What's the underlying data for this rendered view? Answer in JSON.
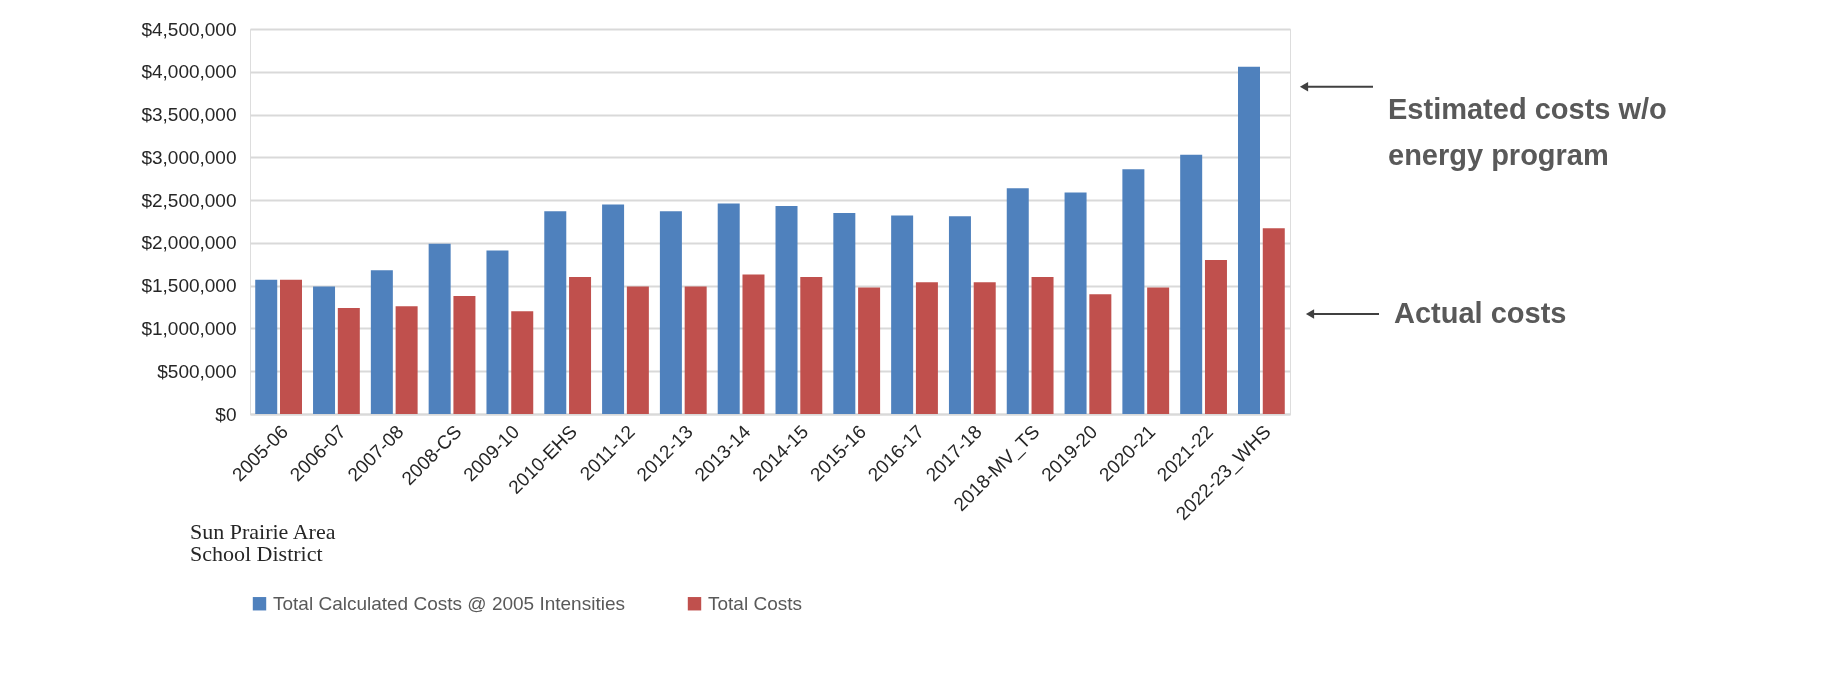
{
  "chart_data": {
    "type": "bar",
    "categories": [
      "2005-06",
      "2006-07",
      "2007-08",
      "2008-CS",
      "2009-10",
      "2010-EHS",
      "2011-12",
      "2012-13",
      "2013-14",
      "2014-15",
      "2015-16",
      "2016-17",
      "2017-18",
      "2018-MV_TS",
      "2019-20",
      "2020-21",
      "2021-22",
      "2022-23_WHS"
    ],
    "series": [
      {
        "name": "Total Calculated Costs @ 2005 Intensities",
        "color": "#4f81bd",
        "values": [
          1570000,
          1490000,
          1680000,
          1990000,
          1910000,
          2370000,
          2450000,
          2370000,
          2460000,
          2430000,
          2350000,
          2320000,
          2310000,
          2640000,
          2590000,
          2860000,
          3030000,
          4060000
        ]
      },
      {
        "name": "Total Costs",
        "color": "#c0504d",
        "values": [
          1570000,
          1240000,
          1260000,
          1380000,
          1200000,
          1600000,
          1490000,
          1490000,
          1630000,
          1600000,
          1480000,
          1540000,
          1540000,
          1600000,
          1400000,
          1480000,
          1800000,
          2170000
        ]
      }
    ],
    "ylim": [
      0,
      4500000
    ],
    "yticks": [
      {
        "value": 0,
        "label": "$0"
      },
      {
        "value": 500000,
        "label": "$500,000"
      },
      {
        "value": 1000000,
        "label": "$1,000,000"
      },
      {
        "value": 1500000,
        "label": "$1,500,000"
      },
      {
        "value": 2000000,
        "label": "$2,000,000"
      },
      {
        "value": 2500000,
        "label": "$2,500,000"
      },
      {
        "value": 3000000,
        "label": "$3,000,000"
      },
      {
        "value": 3500000,
        "label": "$3,500,000"
      },
      {
        "value": 4000000,
        "label": "$4,000,000"
      },
      {
        "value": 4500000,
        "label": "$4,500,000"
      }
    ],
    "grid": "y",
    "legend": "bottom",
    "annotations": [
      "Estimated costs w/o energy program",
      "Actual costs",
      "Sun Prairie Area School District"
    ]
  }
}
